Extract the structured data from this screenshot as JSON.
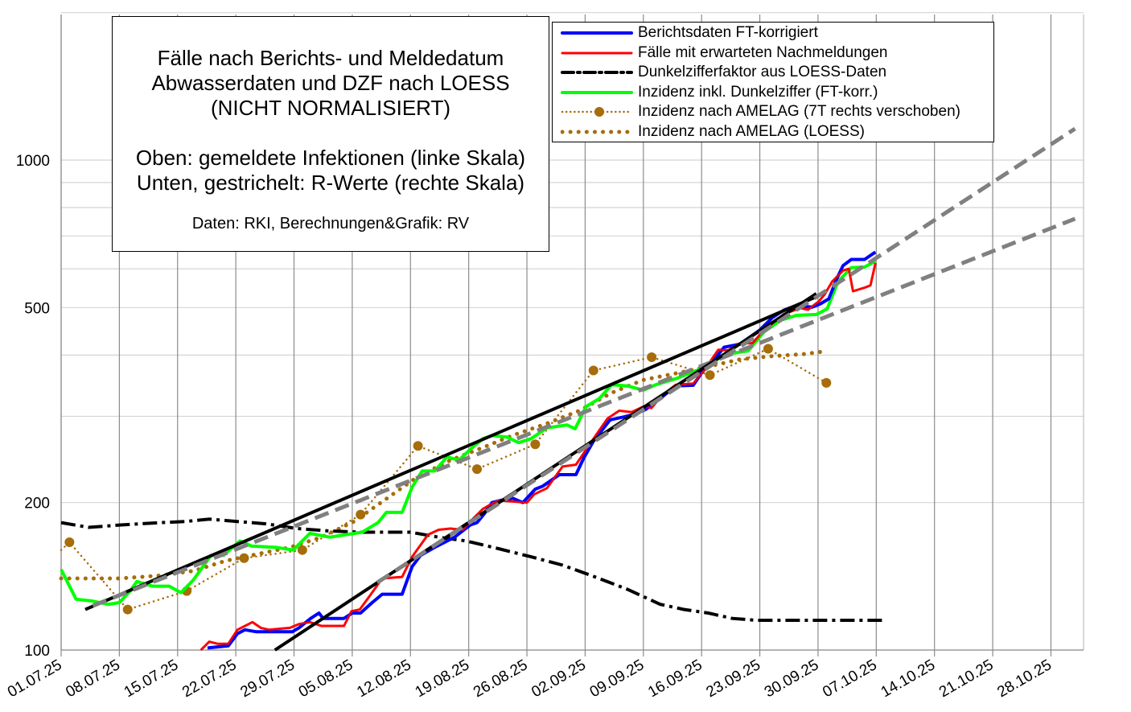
{
  "title_box": {
    "lines": [
      "Fälle nach Berichts- und Meldedatum",
      "Abwasserdaten und DZF nach LOESS",
      "(NICHT NORMALISIERT)"
    ],
    "lines2": [
      "Oben: gemeldete Infektionen (linke Skala)",
      "Unten, gestrichelt: R-Werte (rechte Skala)"
    ],
    "source": "Daten: RKI, Berechnungen&Grafik: RV"
  },
  "chart_data": {
    "type": "line",
    "title": "Fälle nach Berichts- und Meldedatum / Abwasserdaten und DZF nach LOESS (NICHT NORMALISIERT)",
    "xlabel": "",
    "ylabel": "",
    "y_scale": "log",
    "ylim": [
      100,
      2000
    ],
    "y_ticks": [
      100,
      200,
      500,
      1000
    ],
    "y_tick_labels": [
      "100",
      "200",
      "500",
      "1000"
    ],
    "y_grid": [
      100,
      200,
      300,
      400,
      500,
      600,
      700,
      800,
      900,
      1000,
      2000
    ],
    "x_unit": "days since 01.07.25",
    "xlim": [
      0,
      123
    ],
    "x_ticks": [
      0,
      7,
      14,
      21,
      28,
      35,
      42,
      49,
      56,
      63,
      70,
      77,
      84,
      91,
      98,
      105,
      112,
      119
    ],
    "x_tick_labels": [
      "01.07.25",
      "08.07.25",
      "15.07.25",
      "22.07.25",
      "29.07.25",
      "05.08.25",
      "12.08.25",
      "19.08.25",
      "26.08.25",
      "02.09.25",
      "09.09.25",
      "16.09.25",
      "23.09.25",
      "30.09.25",
      "07.10.25",
      "14.10.25",
      "21.10.25",
      "28.10.25"
    ],
    "grid": true,
    "legend_position": "top-right",
    "series": [
      {
        "name": "Berichtsdaten FT-korrigiert",
        "color": "#0000ff",
        "style": "solid",
        "points": [
          [
            17.6,
            101
          ],
          [
            20.1,
            102
          ],
          [
            21.2,
            108
          ],
          [
            22.1,
            110
          ],
          [
            23.4,
            109
          ],
          [
            27.8,
            109
          ],
          [
            28.6,
            111
          ],
          [
            30,
            116
          ],
          [
            31,
            119
          ],
          [
            31.5,
            116
          ],
          [
            34,
            116
          ],
          [
            35,
            119
          ],
          [
            36,
            119
          ],
          [
            37.4,
            125
          ],
          [
            38.6,
            130
          ],
          [
            41,
            130
          ],
          [
            42.2,
            148
          ],
          [
            43.2,
            156
          ],
          [
            44.9,
            162
          ],
          [
            47.3,
            170
          ],
          [
            49.2,
            180
          ],
          [
            50,
            182
          ],
          [
            50.9,
            190
          ],
          [
            51.8,
            200
          ],
          [
            52.8,
            202
          ],
          [
            54.3,
            204
          ],
          [
            55.5,
            200
          ],
          [
            57,
            213
          ],
          [
            57.9,
            216
          ],
          [
            59.9,
            228
          ],
          [
            61.9,
            228
          ],
          [
            62.8,
            246
          ],
          [
            64,
            267
          ],
          [
            66,
            295
          ],
          [
            67.6,
            299
          ],
          [
            69,
            303
          ],
          [
            70.3,
            310
          ],
          [
            72,
            326
          ],
          [
            73.9,
            346
          ],
          [
            76,
            347
          ],
          [
            77.1,
            370
          ],
          [
            78.7,
            395
          ],
          [
            79.7,
            415
          ],
          [
            81.6,
            421
          ],
          [
            84,
            450
          ],
          [
            85.5,
            477
          ],
          [
            86.9,
            494
          ],
          [
            88.4,
            505
          ],
          [
            90.3,
            501
          ],
          [
            91.3,
            509
          ],
          [
            92.3,
            521
          ],
          [
            93.2,
            570
          ],
          [
            94,
            609
          ],
          [
            95,
            627
          ],
          [
            96.6,
            627
          ],
          [
            97.9,
            649
          ]
        ]
      },
      {
        "name": "Fälle mit erwarteten Nachmeldungen",
        "color": "#ff0000",
        "style": "solid",
        "points": [
          [
            16.8,
            100
          ],
          [
            17.8,
            104
          ],
          [
            18.8,
            103
          ],
          [
            20.1,
            103
          ],
          [
            21.2,
            110
          ],
          [
            23,
            114
          ],
          [
            24,
            111
          ],
          [
            25,
            110
          ],
          [
            27.5,
            111
          ],
          [
            28.6,
            113
          ],
          [
            29.9,
            114
          ],
          [
            31.3,
            112
          ],
          [
            34,
            112
          ],
          [
            34.9,
            120
          ],
          [
            35.9,
            121
          ],
          [
            37.1,
            129
          ],
          [
            38.6,
            140
          ],
          [
            41,
            141
          ],
          [
            42.2,
            155
          ],
          [
            44.1,
            172
          ],
          [
            45.4,
            176
          ],
          [
            46.8,
            177
          ],
          [
            48.3,
            176
          ],
          [
            49.2,
            183
          ],
          [
            50.7,
            194
          ],
          [
            51.8,
            199
          ],
          [
            52.6,
            202
          ],
          [
            55.999,
            200
          ],
          [
            56.9,
            208
          ],
          [
            58.4,
            214
          ],
          [
            60.3,
            237
          ],
          [
            61.9,
            239
          ],
          [
            64,
            270
          ],
          [
            65.7,
            297
          ],
          [
            67.1,
            308
          ],
          [
            68.6,
            306
          ],
          [
            70,
            314
          ],
          [
            70.99,
            312
          ],
          [
            72.1,
            329
          ],
          [
            73.9,
            348
          ],
          [
            76,
            350
          ],
          [
            77.3,
            372
          ],
          [
            79,
            410
          ],
          [
            80.2,
            409
          ],
          [
            81.6,
            423
          ],
          [
            83.1,
            423
          ],
          [
            84.3,
            446
          ],
          [
            85.7,
            467
          ],
          [
            86.9,
            485
          ],
          [
            88.9,
            499
          ],
          [
            89.8,
            495
          ],
          [
            91.1,
            515
          ],
          [
            91.8,
            532
          ],
          [
            92.7,
            565
          ],
          [
            94,
            595
          ],
          [
            94.7,
            600
          ],
          [
            95.2,
            540
          ],
          [
            96.6,
            549
          ],
          [
            97.3,
            555
          ],
          [
            97.9,
            616
          ]
        ]
      },
      {
        "name": "Dunkelzifferfaktor aus LOESS-Daten",
        "color": "#000000",
        "style": "dashdot",
        "axis": "right (values shown in left-axis units)",
        "points": [
          [
            0,
            182
          ],
          [
            3.3,
            178
          ],
          [
            7.2,
            180
          ],
          [
            12,
            182
          ],
          [
            14.9,
            183
          ],
          [
            17.8,
            185
          ],
          [
            21.2,
            183
          ],
          [
            24.6,
            181
          ],
          [
            28.4,
            177
          ],
          [
            32.3,
            175
          ],
          [
            36.2,
            174
          ],
          [
            42,
            174
          ],
          [
            45.4,
            170
          ],
          [
            48.7,
            167
          ],
          [
            52.6,
            161
          ],
          [
            56.5,
            155
          ],
          [
            60.3,
            149
          ],
          [
            64.2,
            141
          ],
          [
            68.1,
            133
          ],
          [
            72,
            124
          ],
          [
            74.9,
            121
          ],
          [
            77.8,
            119
          ],
          [
            80.7,
            116
          ],
          [
            83.6,
            115
          ],
          [
            86.5,
            115
          ],
          [
            89.4,
            115
          ],
          [
            93.2,
            115
          ],
          [
            98.8,
            115
          ]
        ]
      },
      {
        "name": "Inzidenz inkl. Dunkelziffer (FT-korr.)",
        "color": "#00ff00",
        "style": "solid",
        "points": [
          [
            0,
            146
          ],
          [
            1.8,
            127
          ],
          [
            3.6,
            126
          ],
          [
            5.7,
            124
          ],
          [
            7,
            125
          ],
          [
            8.3,
            132
          ],
          [
            9.1,
            138
          ],
          [
            11,
            135
          ],
          [
            13,
            135
          ],
          [
            14.4,
            131
          ],
          [
            15.9,
            139
          ],
          [
            18,
            156
          ],
          [
            19.5,
            156
          ],
          [
            21.5,
            167
          ],
          [
            22.9,
            163
          ],
          [
            25.8,
            162
          ],
          [
            27.9,
            160
          ],
          [
            29.9,
            173
          ],
          [
            32.3,
            170
          ],
          [
            34.2,
            172
          ],
          [
            36.2,
            174
          ],
          [
            38.1,
            182
          ],
          [
            39.1,
            191
          ],
          [
            41,
            191
          ],
          [
            42.2,
            215
          ],
          [
            43.4,
            232
          ],
          [
            44.9,
            232
          ],
          [
            46.4,
            248
          ],
          [
            47.8,
            244
          ],
          [
            49.2,
            257
          ],
          [
            50.7,
            270
          ],
          [
            51.8,
            274
          ],
          [
            53.6,
            272
          ],
          [
            55,
            265
          ],
          [
            56.5,
            270
          ],
          [
            58.4,
            284
          ],
          [
            60.8,
            288
          ],
          [
            61.8,
            283
          ],
          [
            63.1,
            314
          ],
          [
            64.7,
            326
          ],
          [
            66.2,
            348
          ],
          [
            68.1,
            346
          ],
          [
            70,
            339
          ],
          [
            71.5,
            348
          ],
          [
            73.9,
            358
          ],
          [
            76.6,
            373
          ],
          [
            77.8,
            380
          ],
          [
            79.7,
            401
          ],
          [
            82.6,
            408
          ],
          [
            84.5,
            446
          ],
          [
            86.5,
            471
          ],
          [
            88.4,
            482
          ],
          [
            90.8,
            484
          ],
          [
            92.1,
            497
          ],
          [
            93.4,
            565
          ],
          [
            95,
            603
          ],
          [
            96.6,
            605
          ],
          [
            97.9,
            622
          ]
        ]
      },
      {
        "name": "Inzidenz nach AMELAG (7T rechts verschoben)",
        "color": "#a66d0a",
        "style": "dotted-markers",
        "points": [
          [
            0,
            160
          ],
          [
            1,
            166
          ],
          [
            8,
            121
          ],
          [
            15.1,
            132
          ],
          [
            22,
            154
          ],
          [
            29,
            160
          ],
          [
            36,
            189
          ],
          [
            42.9,
            261
          ],
          [
            50,
            234
          ],
          [
            57,
            263
          ],
          [
            64,
            372
          ],
          [
            71,
            396
          ],
          [
            78,
            364
          ],
          [
            85,
            412
          ],
          [
            92,
            351
          ]
        ]
      },
      {
        "name": "Inzidenz nach AMELAG (LOESS)",
        "color": "#a66d0a",
        "style": "dots",
        "points": [
          [
            0,
            140
          ],
          [
            7,
            140
          ],
          [
            12,
            142
          ],
          [
            15.9,
            145
          ],
          [
            19.7,
            152
          ],
          [
            23.6,
            157
          ],
          [
            27.5,
            162
          ],
          [
            31.3,
            170
          ],
          [
            35.2,
            183
          ],
          [
            39,
            203
          ],
          [
            42.9,
            226
          ],
          [
            46.8,
            244
          ],
          [
            50.7,
            259
          ],
          [
            54.5,
            275
          ],
          [
            58.4,
            290
          ],
          [
            62.3,
            308
          ],
          [
            66.2,
            335
          ],
          [
            70,
            356
          ],
          [
            73.9,
            367
          ],
          [
            77.8,
            379
          ],
          [
            81.6,
            392
          ],
          [
            85.5,
            398
          ],
          [
            89.4,
            402
          ],
          [
            91.3,
            406
          ]
        ]
      }
    ],
    "trend_lines": [
      {
        "name": "Trend Inzidenz (flach)",
        "color": "#000000",
        "from": [
          2.9,
          121
        ],
        "to": [
          91,
          528
        ],
        "extension_color": "#808080",
        "extension_to": [
          121.9,
          759
        ],
        "dashed_from": 3.8
      },
      {
        "name": "Trend Fälle (steil)",
        "color": "#000000",
        "from": [
          25.7,
          100
        ],
        "to": [
          90.8,
          534
        ],
        "extension_color": "#808080",
        "extension_to": [
          121.9,
          1159
        ],
        "dashed_from": 38
      }
    ]
  }
}
